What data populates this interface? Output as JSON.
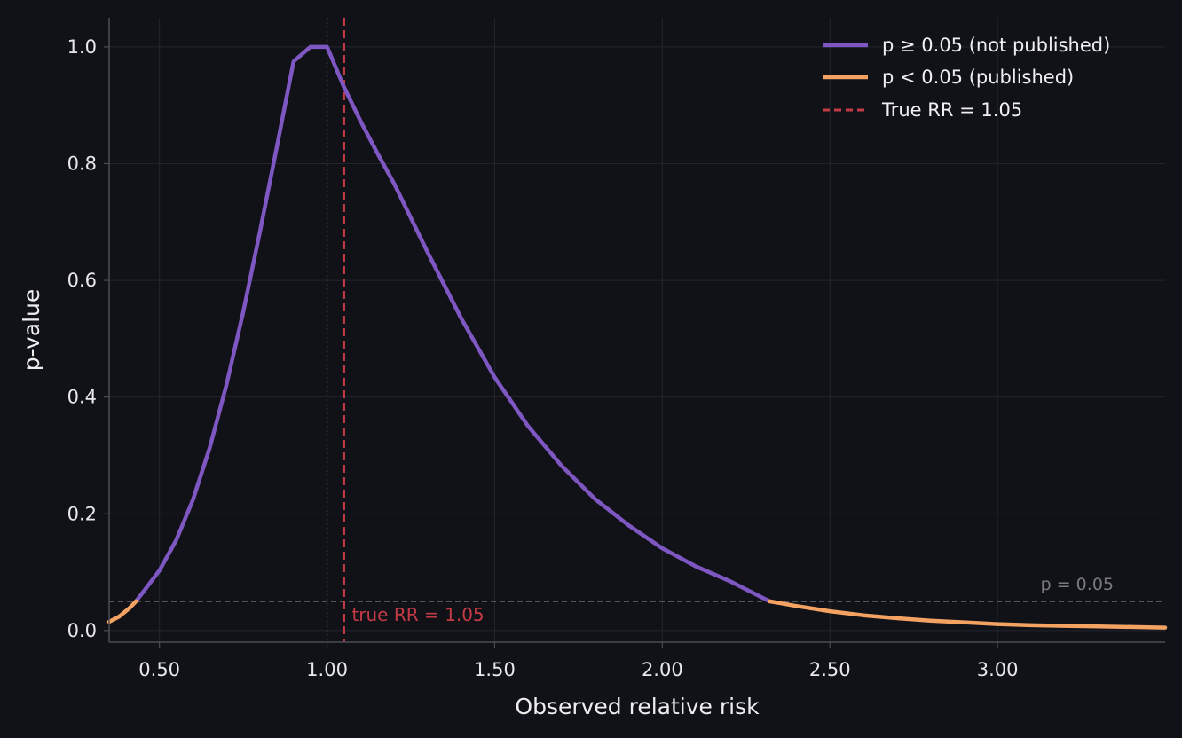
{
  "chart_data": {
    "type": "line",
    "title": "",
    "xlabel": "Observed relative risk",
    "ylabel": "p-value",
    "xlim": [
      0.35,
      3.5
    ],
    "ylim": [
      -0.02,
      1.05
    ],
    "xticks": [
      0.5,
      1.0,
      1.5,
      2.0,
      2.5,
      3.0
    ],
    "xtick_labels": [
      "0.50",
      "1.00",
      "1.50",
      "2.00",
      "2.50",
      "3.00"
    ],
    "yticks": [
      0.0,
      0.2,
      0.4,
      0.6,
      0.8,
      1.0
    ],
    "ytick_labels": [
      "0.0",
      "0.2",
      "0.4",
      "0.6",
      "0.8",
      "1.0"
    ],
    "grid": true,
    "legend_position": "top-right",
    "colors": {
      "background": "#111218",
      "grid": "#23252d",
      "axis": "#4a4c56",
      "not_published": "#7e57c2",
      "published": "#f4a261",
      "true_rr": "#c43a46",
      "threshold": "#7a7a7f",
      "null_line": "#5a5a60"
    },
    "series": [
      {
        "name": "p ≥ 0.05  (not published)",
        "color": "#7e57c2",
        "x": [
          0.43,
          0.45,
          0.5,
          0.55,
          0.6,
          0.65,
          0.7,
          0.75,
          0.8,
          0.85,
          0.9,
          0.95,
          1.0,
          1.05,
          1.1,
          1.15,
          1.2,
          1.3,
          1.4,
          1.5,
          1.6,
          1.7,
          1.8,
          1.9,
          2.0,
          2.1,
          2.2,
          2.32
        ],
        "y": [
          0.05,
          0.065,
          0.103,
          0.155,
          0.224,
          0.313,
          0.421,
          0.546,
          0.684,
          0.828,
          0.975,
          1.0,
          1.0,
          0.932,
          0.873,
          0.818,
          0.766,
          0.648,
          0.535,
          0.434,
          0.35,
          0.282,
          0.225,
          0.18,
          0.141,
          0.11,
          0.085,
          0.05
        ]
      },
      {
        "name": "p < 0.05  (published)",
        "color": "#f4a261",
        "segments": [
          {
            "x": [
              0.35,
              0.38,
              0.41,
              0.43
            ],
            "y": [
              0.015,
              0.024,
              0.038,
              0.05
            ]
          },
          {
            "x": [
              2.32,
              2.4,
              2.5,
              2.6,
              2.7,
              2.8,
              2.9,
              3.0,
              3.1,
              3.2,
              3.3,
              3.4,
              3.5
            ],
            "y": [
              0.05,
              0.042,
              0.033,
              0.026,
              0.021,
              0.017,
              0.014,
              0.011,
              0.009,
              0.008,
              0.007,
              0.006,
              0.005
            ]
          }
        ]
      }
    ],
    "reference_lines": {
      "true_rr": {
        "x": 1.05,
        "legend": "True RR = 1.05",
        "annotation": "true RR = 1.05"
      },
      "threshold": {
        "y": 0.05,
        "annotation": "p = 0.05"
      },
      "null": {
        "x": 1.0
      }
    }
  }
}
